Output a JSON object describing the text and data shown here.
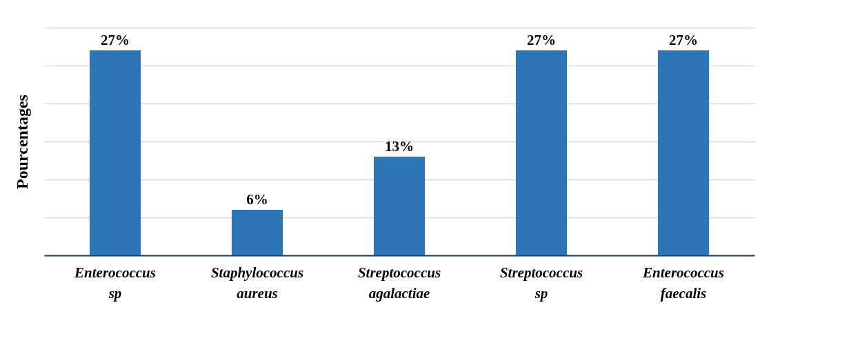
{
  "chart_data": {
    "type": "bar",
    "ylabel": "Pourcentages",
    "categories": [
      "Enterococcus sp",
      "Staphylococcus aureus",
      "Streptococcus agalactiae",
      "Streptococcus sp",
      "Enterococcus faecalis"
    ],
    "values": [
      27,
      6,
      13,
      27,
      27
    ],
    "value_labels": [
      "27%",
      "6%",
      "13%",
      "27%",
      "27%"
    ],
    "color": "#2e75b6",
    "ylim": [
      0,
      30
    ],
    "yticks": [
      {
        "value": 0,
        "label": null
      },
      {
        "value": 5,
        "label": null
      },
      {
        "value": 10,
        "label": null
      },
      {
        "value": 15,
        "label": null
      },
      {
        "value": 20,
        "label": null
      },
      {
        "value": 25,
        "label": null
      },
      {
        "value": 30,
        "label": null
      }
    ],
    "grid": "y",
    "tick_labels": "x"
  }
}
